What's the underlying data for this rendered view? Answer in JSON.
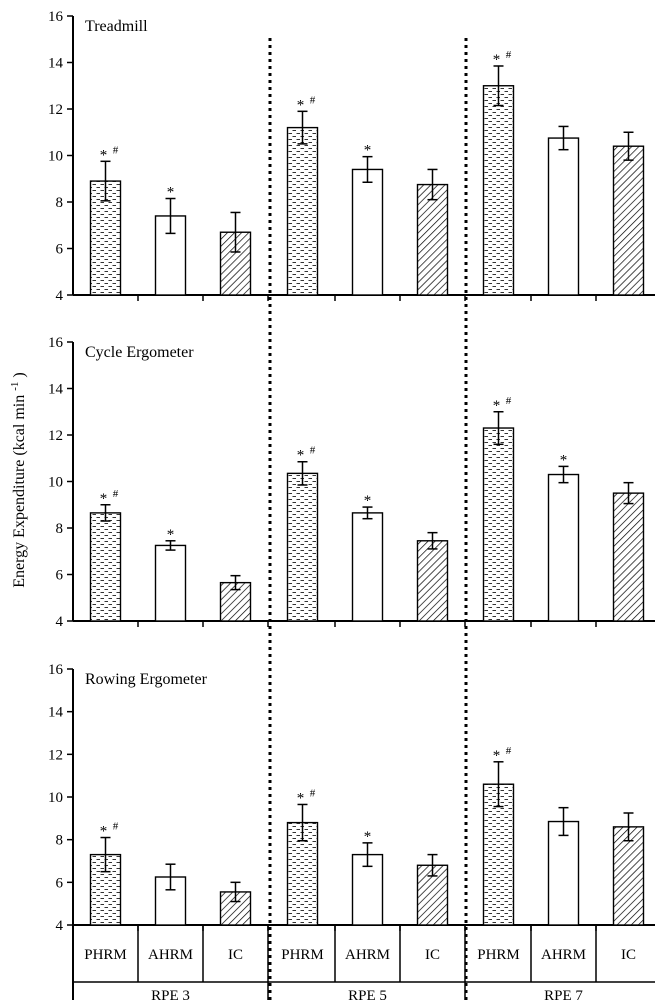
{
  "figure": {
    "ylabel_main": "Energy Expenditure (kcal",
    "ylabel_mid": "min",
    "ylabel_sup": "-1",
    "ylabel_end": ")"
  },
  "chart_data": {
    "type": "bar",
    "ylim": [
      4,
      16
    ],
    "yticks": [
      "4",
      "6",
      "8",
      "10",
      "12",
      "14",
      "16"
    ],
    "ylabel": "Energy Expenditure (kcal min-1)",
    "categories": [
      "PHRM",
      "AHRM",
      "IC"
    ],
    "groups": [
      "RPE 3",
      "RPE 5",
      "RPE 7"
    ],
    "bar_styles": {
      "PHRM": "dotted",
      "AHRM": "white",
      "IC": "hatched"
    },
    "colors": {
      "ink": "#000000",
      "background": "#ffffff"
    },
    "panels": [
      {
        "title": "Treadmill",
        "groups": [
          {
            "group": "RPE 3",
            "bars": [
              {
                "cat": "PHRM",
                "value": 8.9,
                "err": 0.85,
                "marks": [
                  "*",
                  "#"
                ]
              },
              {
                "cat": "AHRM",
                "value": 7.4,
                "err": 0.75,
                "marks": [
                  "*"
                ]
              },
              {
                "cat": "IC",
                "value": 6.7,
                "err": 0.85,
                "marks": []
              }
            ]
          },
          {
            "group": "RPE 5",
            "bars": [
              {
                "cat": "PHRM",
                "value": 11.2,
                "err": 0.7,
                "marks": [
                  "*",
                  "#"
                ]
              },
              {
                "cat": "AHRM",
                "value": 9.4,
                "err": 0.55,
                "marks": [
                  "*"
                ]
              },
              {
                "cat": "IC",
                "value": 8.75,
                "err": 0.65,
                "marks": []
              }
            ]
          },
          {
            "group": "RPE 7",
            "bars": [
              {
                "cat": "PHRM",
                "value": 13.0,
                "err": 0.85,
                "marks": [
                  "*",
                  "#"
                ]
              },
              {
                "cat": "AHRM",
                "value": 10.75,
                "err": 0.5,
                "marks": []
              },
              {
                "cat": "IC",
                "value": 10.4,
                "err": 0.6,
                "marks": []
              }
            ]
          }
        ]
      },
      {
        "title": "Cycle Ergometer",
        "groups": [
          {
            "group": "RPE 3",
            "bars": [
              {
                "cat": "PHRM",
                "value": 8.65,
                "err": 0.35,
                "marks": [
                  "*",
                  "#"
                ]
              },
              {
                "cat": "AHRM",
                "value": 7.25,
                "err": 0.2,
                "marks": [
                  "*"
                ]
              },
              {
                "cat": "IC",
                "value": 5.65,
                "err": 0.3,
                "marks": []
              }
            ]
          },
          {
            "group": "RPE 5",
            "bars": [
              {
                "cat": "PHRM",
                "value": 10.35,
                "err": 0.5,
                "marks": [
                  "*",
                  "#"
                ]
              },
              {
                "cat": "AHRM",
                "value": 8.65,
                "err": 0.25,
                "marks": [
                  "*"
                ]
              },
              {
                "cat": "IC",
                "value": 7.45,
                "err": 0.35,
                "marks": []
              }
            ]
          },
          {
            "group": "RPE 7",
            "bars": [
              {
                "cat": "PHRM",
                "value": 12.3,
                "err": 0.7,
                "marks": [
                  "*",
                  "#"
                ]
              },
              {
                "cat": "AHRM",
                "value": 10.3,
                "err": 0.35,
                "marks": [
                  "*"
                ]
              },
              {
                "cat": "IC",
                "value": 9.5,
                "err": 0.45,
                "marks": []
              }
            ]
          }
        ]
      },
      {
        "title": "Rowing Ergometer",
        "groups": [
          {
            "group": "RPE 3",
            "bars": [
              {
                "cat": "PHRM",
                "value": 7.3,
                "err": 0.8,
                "marks": [
                  "*",
                  "#"
                ]
              },
              {
                "cat": "AHRM",
                "value": 6.25,
                "err": 0.6,
                "marks": []
              },
              {
                "cat": "IC",
                "value": 5.55,
                "err": 0.45,
                "marks": []
              }
            ]
          },
          {
            "group": "RPE 5",
            "bars": [
              {
                "cat": "PHRM",
                "value": 8.8,
                "err": 0.85,
                "marks": [
                  "*",
                  "#"
                ]
              },
              {
                "cat": "AHRM",
                "value": 7.3,
                "err": 0.55,
                "marks": [
                  "*"
                ]
              },
              {
                "cat": "IC",
                "value": 6.8,
                "err": 0.5,
                "marks": []
              }
            ]
          },
          {
            "group": "RPE 7",
            "bars": [
              {
                "cat": "PHRM",
                "value": 10.6,
                "err": 1.05,
                "marks": [
                  "*",
                  "#"
                ]
              },
              {
                "cat": "AHRM",
                "value": 8.85,
                "err": 0.65,
                "marks": []
              },
              {
                "cat": "IC",
                "value": 8.6,
                "err": 0.65,
                "marks": []
              }
            ]
          }
        ]
      }
    ]
  }
}
